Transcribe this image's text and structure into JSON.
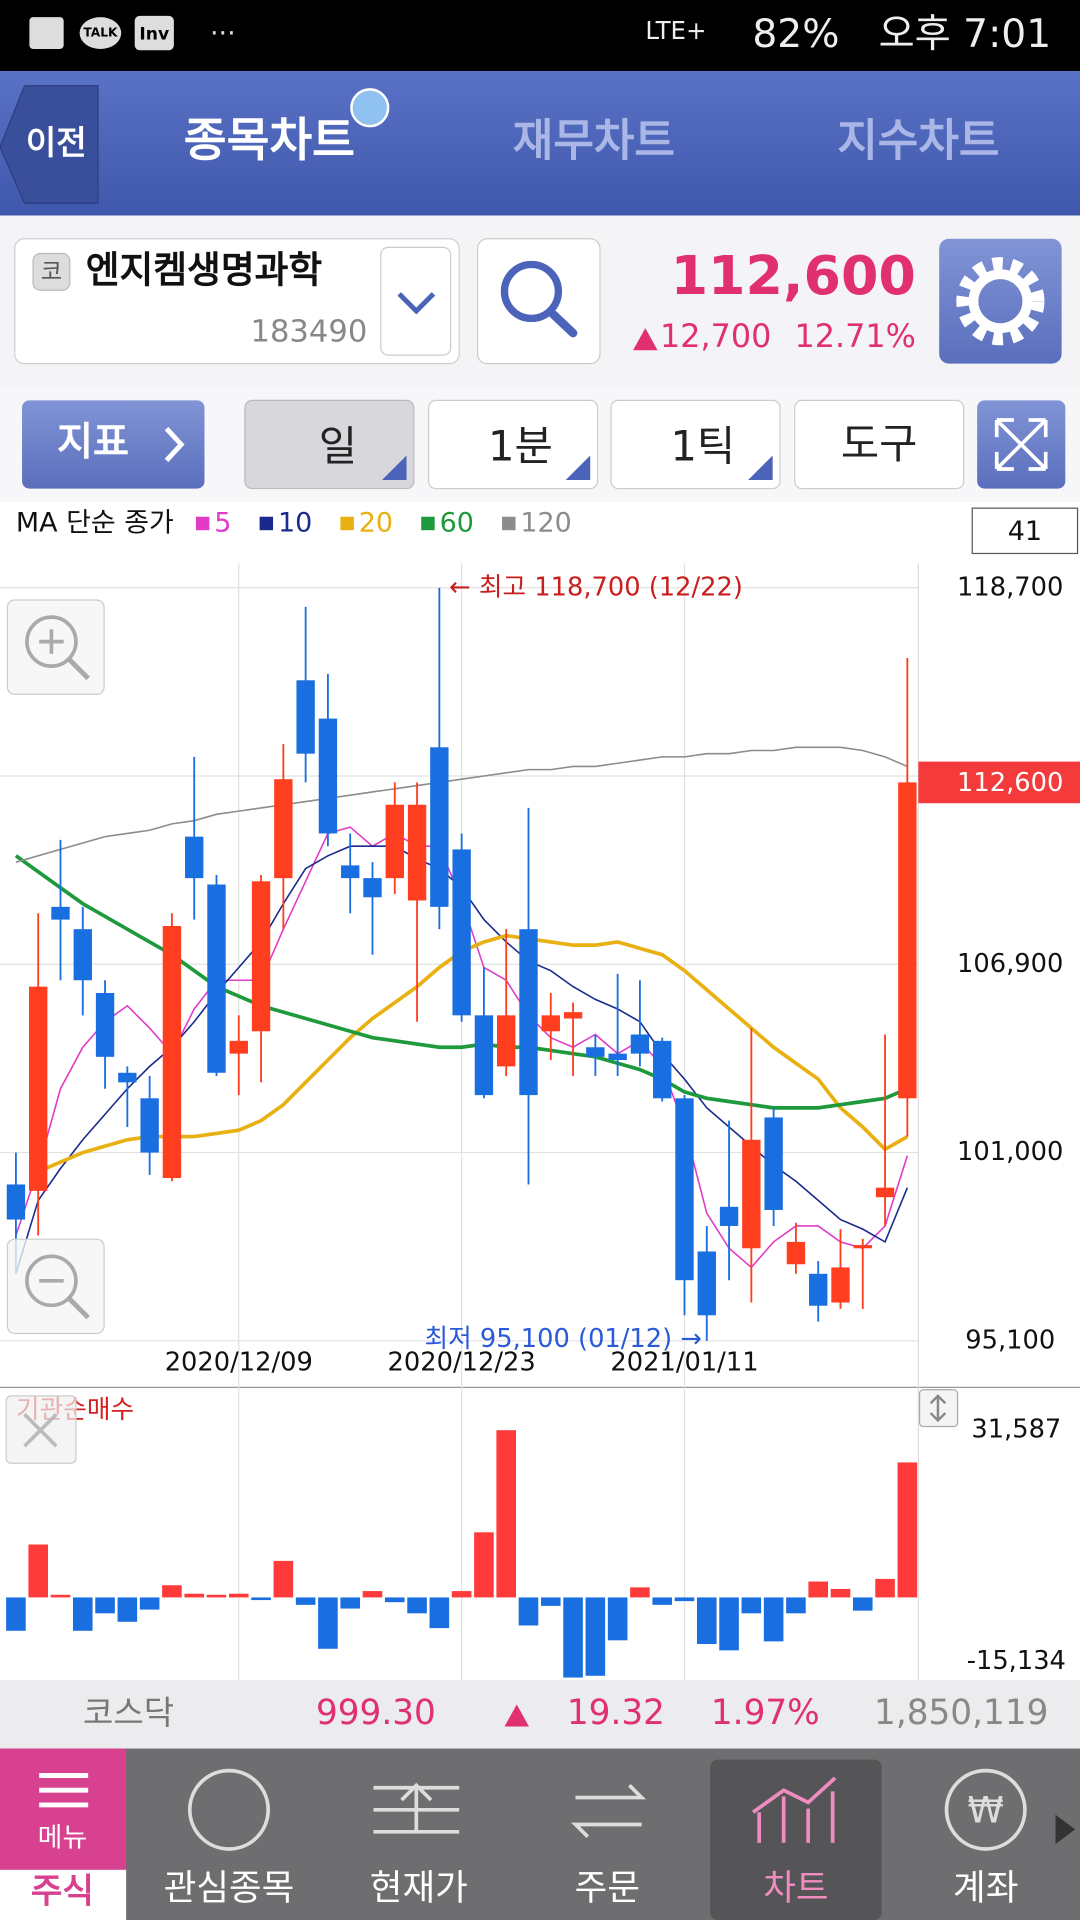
{
  "status_bar": {
    "icons": [
      "TALK",
      "Inv"
    ],
    "network": "LTE+",
    "battery": "82%",
    "time": "오후 7:01"
  },
  "tabs": {
    "back": "이전",
    "items": [
      "종목차트",
      "재무차트",
      "지수차트"
    ]
  },
  "stock": {
    "market": "코",
    "name": "엔지켐생명과학",
    "code": "183490",
    "price": "112,600",
    "change": "12,700",
    "change_pct": "12.71%"
  },
  "toolbar": {
    "indicator": "지표",
    "period": "일",
    "minute": "1분",
    "tick": "1틱",
    "tools": "도구"
  },
  "chart": {
    "type": "candlestick",
    "legend_title": "MA 단순 종가",
    "count": "41",
    "categories": [
      null,
      null,
      null,
      null,
      null,
      null,
      null,
      null,
      null,
      null,
      "2020/12/09",
      null,
      null,
      null,
      null,
      null,
      null,
      null,
      null,
      null,
      "2020/12/23",
      null,
      null,
      null,
      null,
      null,
      null,
      null,
      null,
      null,
      "2021/01/11",
      null,
      null,
      null,
      null,
      null,
      null,
      null,
      null,
      null,
      null
    ],
    "open": [
      100000,
      99800,
      108700,
      108000,
      106000,
      103500,
      102700,
      100200,
      110900,
      109400,
      104100,
      104800,
      109600,
      115800,
      114600,
      110000,
      109600,
      109600,
      108900,
      113700,
      110500,
      105300,
      103700,
      108000,
      104800,
      105200,
      104300,
      104100,
      104700,
      104500,
      102700,
      97900,
      99300,
      98000,
      102100,
      97500,
      97200,
      96300,
      98000,
      99600,
      102700
    ],
    "high": [
      101000,
      108500,
      110800,
      108700,
      106400,
      103700,
      103400,
      108500,
      113400,
      109700,
      105300,
      109700,
      113800,
      118100,
      116000,
      111000,
      110100,
      112600,
      112600,
      118700,
      111000,
      106800,
      108000,
      111800,
      106000,
      105700,
      104700,
      106600,
      106400,
      104600,
      102800,
      98700,
      102000,
      104900,
      102400,
      98800,
      97600,
      98600,
      98300,
      104700,
      116500
    ],
    "low": [
      97200,
      98400,
      106400,
      105300,
      103000,
      101800,
      100300,
      100100,
      108300,
      103400,
      102800,
      103200,
      108000,
      112600,
      110600,
      108500,
      107200,
      109100,
      105100,
      108000,
      105100,
      102700,
      103400,
      100000,
      103900,
      103400,
      103400,
      103400,
      103700,
      102600,
      95900,
      95100,
      97000,
      96300,
      98700,
      97200,
      95700,
      96100,
      96100,
      98700,
      101500
    ],
    "close": [
      98900,
      106200,
      108300,
      106400,
      104000,
      103200,
      101000,
      108100,
      109600,
      103500,
      104500,
      109500,
      112700,
      113500,
      111000,
      109600,
      109000,
      111900,
      111900,
      108700,
      105300,
      102800,
      105300,
      102800,
      105300,
      105400,
      104000,
      103900,
      104100,
      102700,
      97000,
      95900,
      98700,
      101400,
      99200,
      98200,
      96200,
      97400,
      98100,
      99900,
      112600
    ],
    "up_color": "#ff3d1f",
    "down_color": "#1a6fe0",
    "ma": [
      {
        "name": "5",
        "color": "#e03cc8",
        "values": [
          98400,
          100500,
          103000,
          104300,
          105100,
          105600,
          104900,
          104100,
          105500,
          106400,
          106400,
          106400,
          108000,
          109500,
          111000,
          111200,
          110600,
          111000,
          110600,
          110600,
          108900,
          106800,
          106400,
          105300,
          104600,
          104300,
          104700,
          104100,
          104500,
          103700,
          101800,
          99100,
          98000,
          97400,
          98200,
          98700,
          98700,
          98200,
          98000,
          98700,
          100900
        ]
      },
      {
        "name": "10",
        "color": "#1a2a8c",
        "values": [
          97200,
          99500,
          100500,
          101400,
          102200,
          103000,
          103700,
          104300,
          105100,
          106000,
          106800,
          107600,
          108800,
          109900,
          110300,
          110600,
          110600,
          110600,
          110200,
          109900,
          109300,
          108300,
          107600,
          107000,
          106700,
          106200,
          105800,
          105500,
          105100,
          104100,
          103300,
          102400,
          101800,
          101200,
          100600,
          100100,
          99500,
          98900,
          98600,
          98200,
          99900
        ]
      },
      {
        "name": "20",
        "color": "#e8b010",
        "values": [
          null,
          100400,
          100700,
          101000,
          101200,
          101400,
          101500,
          101500,
          101500,
          101600,
          101700,
          102000,
          102500,
          103200,
          103900,
          104600,
          105200,
          105700,
          106200,
          106800,
          107300,
          107600,
          107800,
          107700,
          107600,
          107500,
          107500,
          107600,
          107400,
          107200,
          106700,
          106100,
          105500,
          104900,
          104300,
          103800,
          103300,
          102400,
          101800,
          101100,
          101500
        ]
      },
      {
        "name": "60",
        "color": "#1e9a3c",
        "values": [
          110300,
          109800,
          109300,
          108800,
          108400,
          108000,
          107600,
          107200,
          106700,
          106200,
          105900,
          105600,
          105400,
          105200,
          105000,
          104800,
          104600,
          104500,
          104400,
          104300,
          104300,
          104400,
          104300,
          104300,
          104200,
          104100,
          104000,
          103800,
          103600,
          103300,
          102900,
          102700,
          102600,
          102500,
          102400,
          102400,
          102400,
          102500,
          102600,
          102700,
          103000
        ]
      },
      {
        "name": "120",
        "color": "#8c8c8c",
        "values": [
          110100,
          110300,
          110500,
          110700,
          110900,
          111000,
          111100,
          111300,
          111400,
          111600,
          111700,
          111800,
          111900,
          112000,
          112100,
          112200,
          112300,
          112400,
          112500,
          112600,
          112700,
          112800,
          112900,
          113000,
          113000,
          113100,
          113100,
          113200,
          113300,
          113400,
          113400,
          113500,
          113500,
          113600,
          113600,
          113700,
          113700,
          113700,
          113600,
          113400,
          113100
        ]
      }
    ],
    "ylim": [
      95100,
      118700
    ],
    "yticks": [
      {
        "value": 118700,
        "label": "118,700"
      },
      {
        "value": 106900,
        "label": "106,900"
      },
      {
        "value": 101000,
        "label": "101,000"
      },
      {
        "value": 95100,
        "label": "95,100"
      }
    ],
    "ygrid": [
      95100,
      101000,
      106900,
      112800,
      118700
    ],
    "last_price": {
      "value": 112600,
      "label": "112,600"
    },
    "annotations": [
      {
        "text": "← 최고 118,700 (12/22)",
        "index": 19,
        "value": 118700
      },
      {
        "text": "최저 95,100 (01/12) →",
        "index": 31,
        "value": 95100
      }
    ],
    "flow": {
      "title": "기관순매수",
      "pos_color": "#ff3a3a",
      "neg_color": "#1a6fe0",
      "values": [
        -6300,
        10000,
        500,
        -6300,
        -3000,
        -4600,
        -2300,
        2300,
        700,
        500,
        700,
        -500,
        6900,
        -1400,
        -9700,
        -2100,
        1200,
        -900,
        -3000,
        -5800,
        1200,
        12300,
        31587,
        -5300,
        -1600,
        -15134,
        -14800,
        -8100,
        1900,
        -1400,
        -700,
        -8800,
        -10000,
        -3000,
        -8300,
        -3000,
        3000,
        1600,
        -2500,
        3500,
        25500
      ],
      "ylim": [
        -15134,
        31587
      ],
      "yticks": [
        {
          "value": 31587,
          "label": "31,587"
        },
        {
          "value": -15134,
          "label": "-15,134"
        }
      ]
    }
  },
  "index_bar": {
    "name": "코스닥",
    "value": "999.30",
    "change": "19.32",
    "change_pct": "1.97%",
    "volume": "1,850,119"
  },
  "nav": {
    "menu": "메뉴",
    "items": [
      "주식",
      "관심종목",
      "현재가",
      "주문",
      "차트",
      "계좌"
    ]
  }
}
